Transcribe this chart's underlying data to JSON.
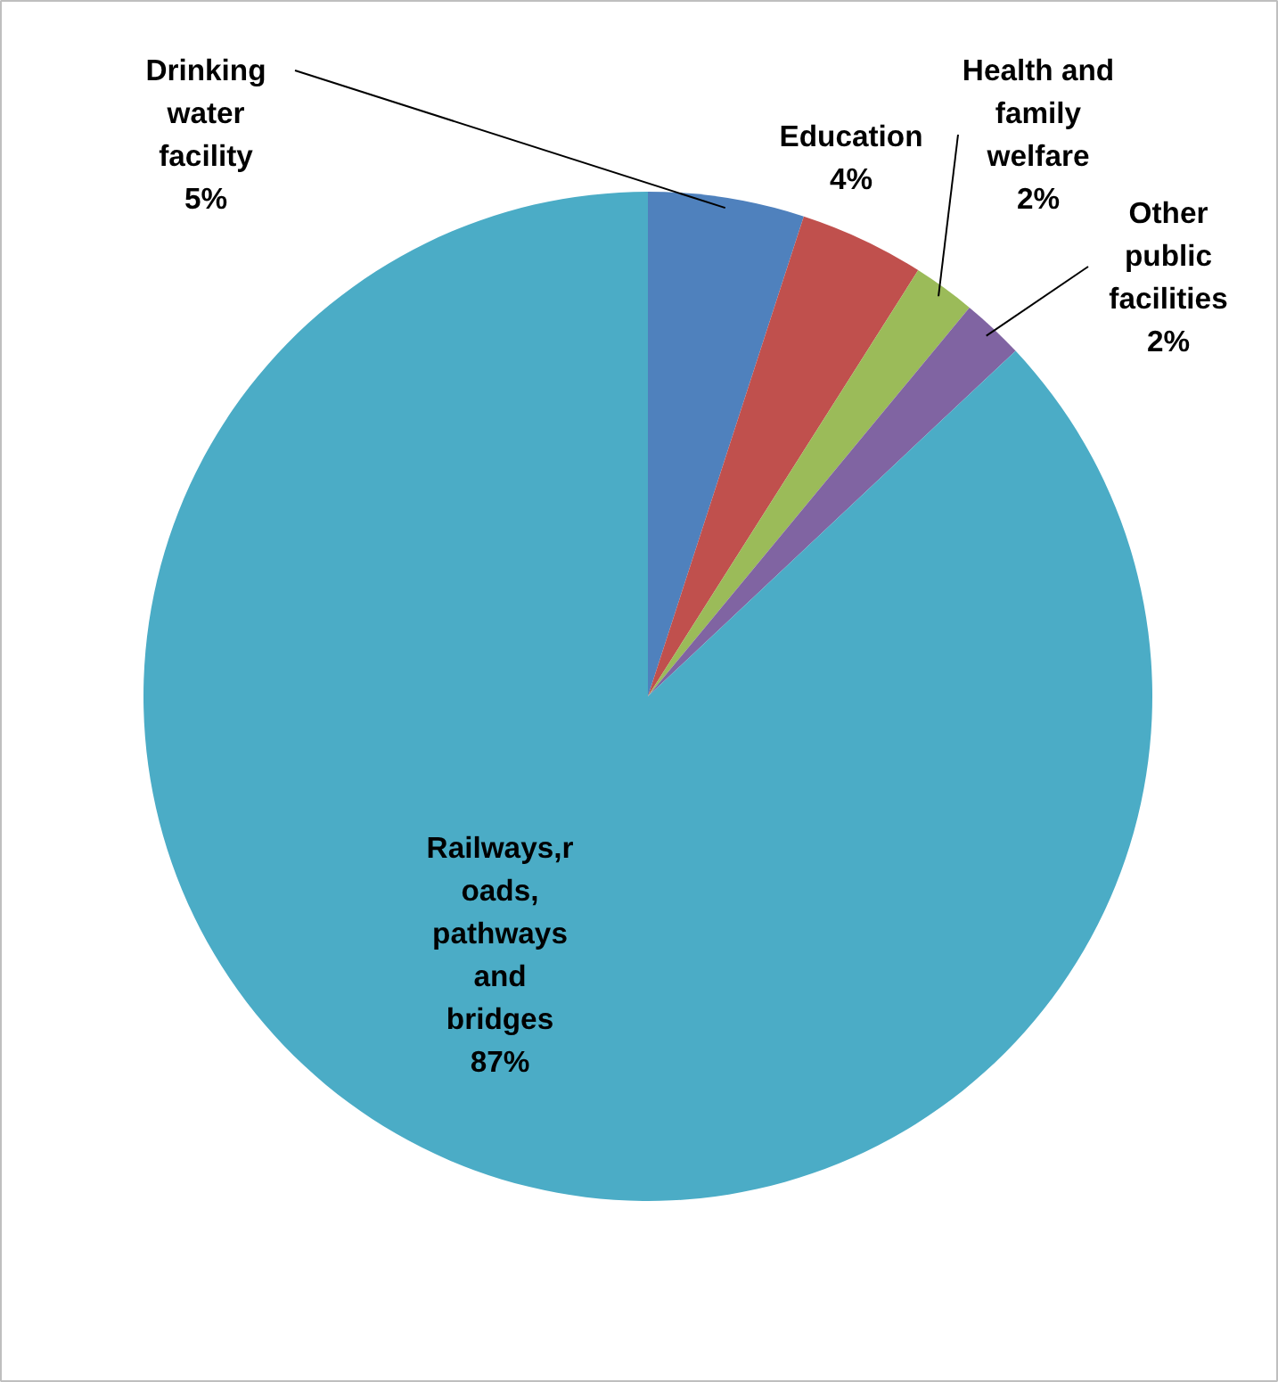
{
  "chart_data": {
    "type": "pie",
    "categories": [
      "Drinking water facility",
      "Education",
      "Health and family welfare",
      "Other public facilities",
      "Railways,roads, pathways and bridges"
    ],
    "values": [
      5,
      4,
      2,
      2,
      87
    ],
    "colors": [
      "#4f81bd",
      "#c0504d",
      "#9bbb59",
      "#8064a2",
      "#4bacc6"
    ],
    "value_labels": [
      "5%",
      "4%",
      "2%",
      "2%",
      "87%"
    ]
  }
}
